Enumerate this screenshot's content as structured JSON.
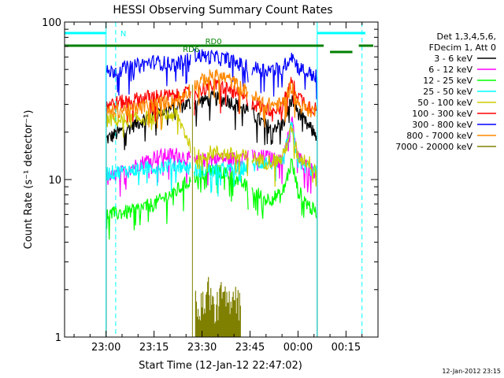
{
  "chart_data": {
    "type": "line",
    "title": "HESSI Observing Summary Count Rates",
    "xlabel": "Start Time (12-Jan-12 22:47:02)",
    "ylabel": "Count Rate (s⁻¹ detector⁻¹)",
    "y_scale": "log",
    "ylim": [
      1,
      100
    ],
    "xlim": [
      "22:47:02",
      "00:25:00"
    ],
    "grid": false,
    "x_ticks": [
      "23:00",
      "23:15",
      "23:30",
      "23:45",
      "00:00",
      "00:15"
    ],
    "y_ticks": [
      "1",
      "10",
      "100"
    ],
    "legend": {
      "position": "right",
      "header": [
        "Det 1,3,4,5,6,",
        "FDecim 1, Att 0"
      ]
    },
    "series": [
      {
        "name": "3 - 6 keV",
        "color": "#000000",
        "x": [
          "23:00",
          "23:08",
          "23:15",
          "23:22",
          "23:28",
          "23:33",
          "23:38",
          "23:44",
          "23:50",
          "23:55",
          "23:58",
          "00:00",
          "00:03",
          "00:06"
        ],
        "y": [
          18,
          22,
          26,
          29,
          31,
          33,
          32,
          28,
          22,
          22,
          32,
          27,
          22,
          19
        ]
      },
      {
        "name": "6 - 12 keV",
        "color": "#ff00ff",
        "x": [
          "23:00",
          "23:08",
          "23:15",
          "23:22",
          "23:28",
          "23:33",
          "23:38",
          "23:44",
          "23:50",
          "23:55",
          "23:58",
          "00:00",
          "00:03",
          "00:06"
        ],
        "y": [
          10,
          12,
          14,
          14.5,
          13,
          13.5,
          13.5,
          14,
          14,
          13,
          24,
          14,
          12,
          11
        ]
      },
      {
        "name": "12 - 25 keV",
        "color": "#00ff00",
        "x": [
          "23:00",
          "23:08",
          "23:15",
          "23:22",
          "23:28",
          "23:33",
          "23:38",
          "23:44",
          "23:50",
          "23:55",
          "23:58",
          "00:00",
          "00:03",
          "00:06"
        ],
        "y": [
          6,
          6.3,
          7,
          8.5,
          10.5,
          11.5,
          11,
          9,
          7.5,
          8,
          13,
          8.5,
          7,
          6
        ]
      },
      {
        "name": "25 - 50 keV",
        "color": "#00ffff",
        "x": [
          "23:00",
          "23:08",
          "23:15",
          "23:22",
          "23:28",
          "23:33",
          "23:38",
          "23:44",
          "23:50",
          "23:55",
          "23:58",
          "00:00",
          "00:03",
          "00:06"
        ],
        "y": [
          11,
          11.5,
          12,
          12.5,
          11.5,
          11.5,
          11.5,
          12,
          13,
          12.5,
          22,
          13,
          12,
          11
        ]
      },
      {
        "name": "50 - 100 keV",
        "color": "#cccc00",
        "x": [
          "23:00",
          "23:08",
          "23:15",
          "23:22",
          "23:28",
          "23:33",
          "23:38",
          "23:44",
          "23:50",
          "23:55",
          "23:58",
          "00:00",
          "00:03",
          "00:06"
        ],
        "y": [
          24,
          24,
          25,
          26,
          14,
          15,
          14.5,
          14,
          13,
          13.5,
          21,
          14,
          13,
          12
        ]
      },
      {
        "name": "100 - 300 keV",
        "color": "#ff0000",
        "x": [
          "23:00",
          "23:08",
          "23:15",
          "23:22",
          "23:28",
          "23:33",
          "23:38",
          "23:44",
          "23:50",
          "23:55",
          "23:58",
          "00:00",
          "00:03",
          "00:06"
        ],
        "y": [
          30,
          32,
          34,
          34,
          36,
          40,
          38,
          32,
          28,
          29,
          42,
          34,
          30,
          28
        ]
      },
      {
        "name": "300 - 800 keV",
        "color": "#0000ff",
        "x": [
          "23:00",
          "23:08",
          "23:15",
          "23:22",
          "23:28",
          "23:33",
          "23:38",
          "23:44",
          "23:50",
          "23:55",
          "23:58",
          "00:00",
          "00:03",
          "00:06"
        ],
        "y": [
          48,
          52,
          56,
          54,
          62,
          60,
          58,
          52,
          50,
          50,
          62,
          52,
          48,
          45
        ]
      },
      {
        "name": "800 - 7000 keV",
        "color": "#ff8800",
        "x": [
          "23:00",
          "23:08",
          "23:15",
          "23:22",
          "23:28",
          "23:33",
          "23:38",
          "23:44",
          "23:50",
          "23:55",
          "23:58",
          "00:00",
          "00:03",
          "00:06"
        ],
        "y": [
          27,
          28,
          30,
          32,
          40,
          46,
          44,
          36,
          30,
          30,
          40,
          30,
          28,
          27
        ]
      },
      {
        "name": "7000 - 20000 keV",
        "color": "#808000",
        "x": [
          "23:28",
          "23:30",
          "23:32",
          "23:34",
          "23:36",
          "23:38",
          "23:40",
          "23:42"
        ],
        "y": [
          1.6,
          1.4,
          1.9,
          1.3,
          1.7,
          1.5,
          1.8,
          1.4
        ]
      }
    ],
    "annotations": [
      {
        "text": "N",
        "color": "#00ffff"
      },
      {
        "text": "RD0",
        "color": "#008000"
      },
      {
        "text": "RD6",
        "color": "#008000"
      }
    ],
    "footer_date": "12-Jan-2012 23:15"
  }
}
